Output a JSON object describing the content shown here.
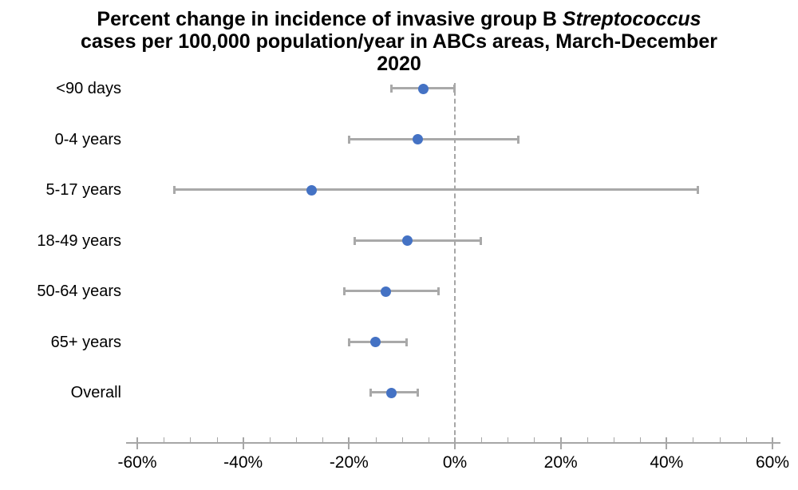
{
  "title": {
    "line1_prefix": "Percent change in incidence of invasive group B ",
    "line1_italic": "Streptococcus",
    "line2": "cases per 100,000 population/year in ABCs areas, March-December",
    "line3": "2020"
  },
  "chart_data": {
    "type": "scatter",
    "subtype": "forest-plot-dot-with-error-bars",
    "orientation": "horizontal",
    "categories": [
      "<90 days",
      "0-4 years",
      "5-17 years",
      "18-49 years",
      "50-64 years",
      "65+ years",
      "Overall"
    ],
    "series": [
      {
        "name": "Percent change in incidence",
        "values": [
          -6,
          -7,
          -27,
          -9,
          -13,
          -15,
          -12
        ],
        "ci_low": [
          -12,
          -20,
          -53,
          -19,
          -21,
          -20,
          -16
        ],
        "ci_high": [
          0,
          12,
          46,
          5,
          -3,
          -9,
          -7
        ]
      }
    ],
    "x_tick_values": [
      -60,
      -40,
      -20,
      0,
      20,
      40,
      60
    ],
    "x_tick_labels": [
      "-60%",
      "-40%",
      "-20%",
      "0%",
      "20%",
      "40%",
      "60%"
    ],
    "minor_tick_step": 5,
    "xlim": [
      -62,
      61.5
    ],
    "reference_line_x": 0,
    "grid": false,
    "legend": false,
    "colors": {
      "marker": "#4472c4",
      "error_bar": "#a9a9a9",
      "axis": "#a6a6a6",
      "reference_line": "#a6a6a6",
      "text": "#000000"
    }
  }
}
